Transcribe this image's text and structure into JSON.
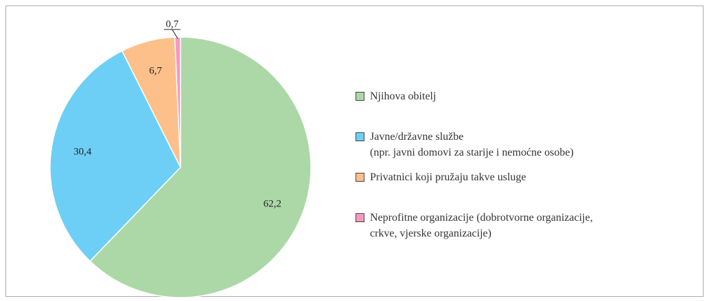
{
  "chart_data": {
    "type": "pie",
    "series": [
      {
        "name": "Njihova obitelj",
        "color": "#acd8a7"
      },
      {
        "name": "Javne/državne službe\n(npr. javni domovi za starije i nemoćne osobe)",
        "color": "#6dcff6"
      },
      {
        "name": "Privatnici koji pružaju takve usluge",
        "color": "#fdc08b"
      },
      {
        "name": "Neprofitne organizacije (dobrotvorne organizacije,\ncrkve, vjerske organizacije)",
        "color": "#f49ac1"
      }
    ],
    "values": [
      62.2,
      30.4,
      6.7,
      0.7
    ],
    "value_labels": [
      "62,2",
      "30,4",
      "6,7",
      "0,7"
    ]
  }
}
